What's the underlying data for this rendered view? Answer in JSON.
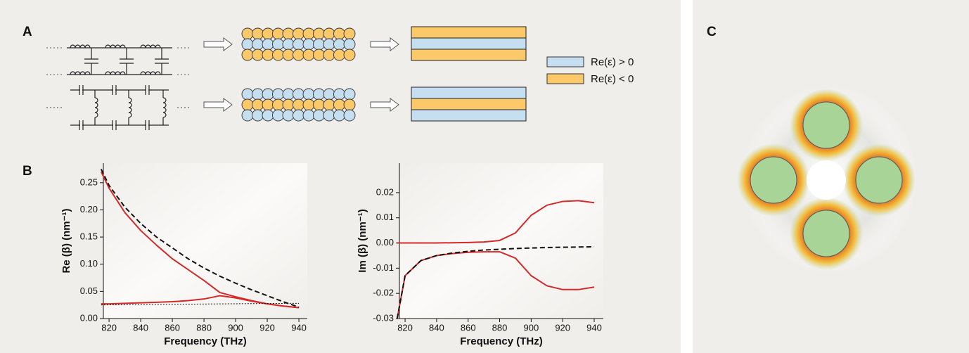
{
  "panels": {
    "A": "A",
    "B": "B",
    "C": "C"
  },
  "legend": {
    "positive": "Re(ε) > 0",
    "negative": "Re(ε) < 0"
  },
  "chart_data": [
    {
      "type": "line",
      "xlabel": "Frequency (THz)",
      "ylabel": "Re (β) (nm⁻¹)",
      "x": [
        815,
        820,
        830,
        840,
        850,
        860,
        870,
        880,
        890,
        900,
        910,
        920,
        930,
        940
      ],
      "series": [
        {
          "color": "#d42a2a",
          "dash": "solid",
          "values": [
            0.27,
            0.24,
            0.195,
            0.162,
            0.135,
            0.11,
            0.09,
            0.07,
            0.048,
            0.04,
            0.033,
            0.027,
            0.023,
            0.02
          ]
        },
        {
          "color": "#d42a2a",
          "dash": "solid",
          "values": [
            0.027,
            0.027,
            0.028,
            0.029,
            0.03,
            0.031,
            0.033,
            0.036,
            0.042,
            0.038,
            0.032,
            0.027,
            0.023,
            0.02
          ]
        },
        {
          "color": "#111111",
          "dash": "dashed",
          "values": [
            0.275,
            0.245,
            0.205,
            0.175,
            0.15,
            0.13,
            0.11,
            0.093,
            0.078,
            0.065,
            0.053,
            0.042,
            0.031,
            0.021
          ]
        },
        {
          "color": "#111111",
          "dash": "dotted",
          "values": [
            0.025,
            0.0252,
            0.0255,
            0.0257,
            0.026,
            0.0262,
            0.0265,
            0.0267,
            0.027,
            0.0272,
            0.0275,
            0.0277,
            0.0279,
            0.028
          ]
        }
      ],
      "xlim": [
        816.4,
        945.3
      ],
      "xticks": [
        820,
        840,
        860,
        880,
        900,
        920,
        940
      ],
      "ylim": [
        0,
        0.286
      ],
      "yticks": [
        {
          "value": 0,
          "label": "0.00"
        },
        0.05,
        {
          "value": 0.1,
          "label": "0.10"
        },
        0.15,
        {
          "value": 0.2,
          "label": "0.20"
        },
        0.25
      ]
    },
    {
      "type": "line",
      "xlabel": "Frequency (THz)",
      "ylabel": "Im (β) (nm⁻¹)",
      "x": [
        815,
        820,
        830,
        840,
        850,
        860,
        870,
        880,
        890,
        900,
        910,
        920,
        930,
        940
      ],
      "series": [
        {
          "color": "#d42a2a",
          "dash": "solid",
          "values": [
            0,
            0,
            0,
            0,
            0.0001,
            0.0002,
            0.0004,
            0.001,
            0.004,
            0.011,
            0.015,
            0.0165,
            0.0168,
            0.016
          ]
        },
        {
          "color": "#d42a2a",
          "dash": "solid",
          "values": [
            -0.03,
            -0.013,
            -0.007,
            -0.005,
            -0.0042,
            -0.0037,
            -0.0035,
            -0.0035,
            -0.006,
            -0.013,
            -0.017,
            -0.0185,
            -0.0185,
            -0.0175
          ]
        },
        {
          "color": "#111111",
          "dash": "dashed",
          "values": [
            -0.03,
            -0.013,
            -0.007,
            -0.005,
            -0.004,
            -0.0033,
            -0.0028,
            -0.0025,
            -0.0022,
            -0.002,
            -0.0018,
            -0.0017,
            -0.0016,
            -0.0015
          ]
        }
      ],
      "xlim": [
        816.4,
        945.8
      ],
      "xticks": [
        820,
        840,
        860,
        880,
        900,
        920,
        940
      ],
      "ylim": [
        -0.03,
        0.0317
      ],
      "yticks": [
        -0.03,
        -0.02,
        -0.01,
        {
          "value": 0,
          "label": "0.00"
        },
        0.01,
        0.02
      ]
    }
  ]
}
